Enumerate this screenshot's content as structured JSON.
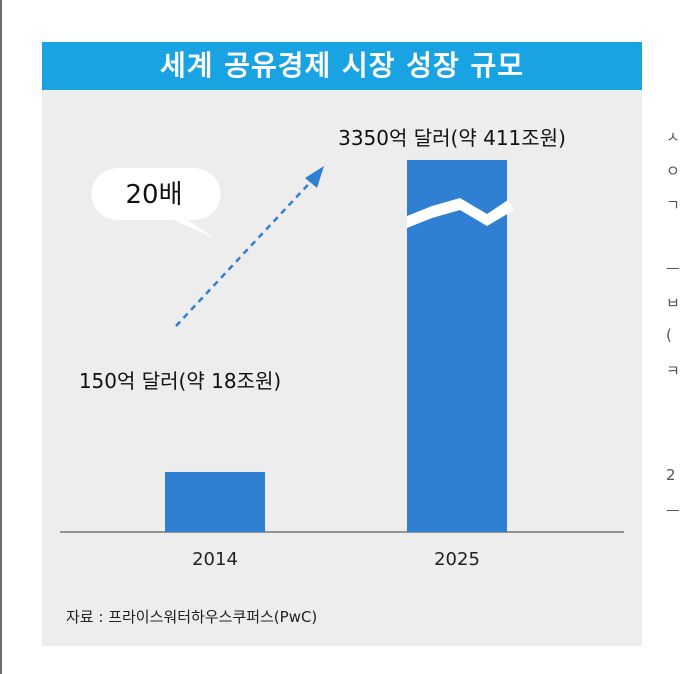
{
  "chart_data": {
    "type": "bar",
    "title": "세계 공유경제 시장 성장 규모",
    "categories": [
      "2014",
      "2025"
    ],
    "values": [
      150,
      3350
    ],
    "unit": "억 달러",
    "data_labels": [
      "150억 달러(약 18조원)",
      "3350억 달러(약 411조원)"
    ],
    "annotation": "20배",
    "axis_break": true,
    "bar_color": "#2f7fd2",
    "grid": false,
    "legend": "none"
  },
  "source": "자료 : 프라이스워터하우스쿠퍼스(PwC)",
  "side_fragments": [
    "ㅅ",
    "ㅇ",
    "ㄱ",
    "ㅡ",
    "ㅂ",
    "(",
    "ㅋ",
    "2",
    "ㅡ"
  ]
}
